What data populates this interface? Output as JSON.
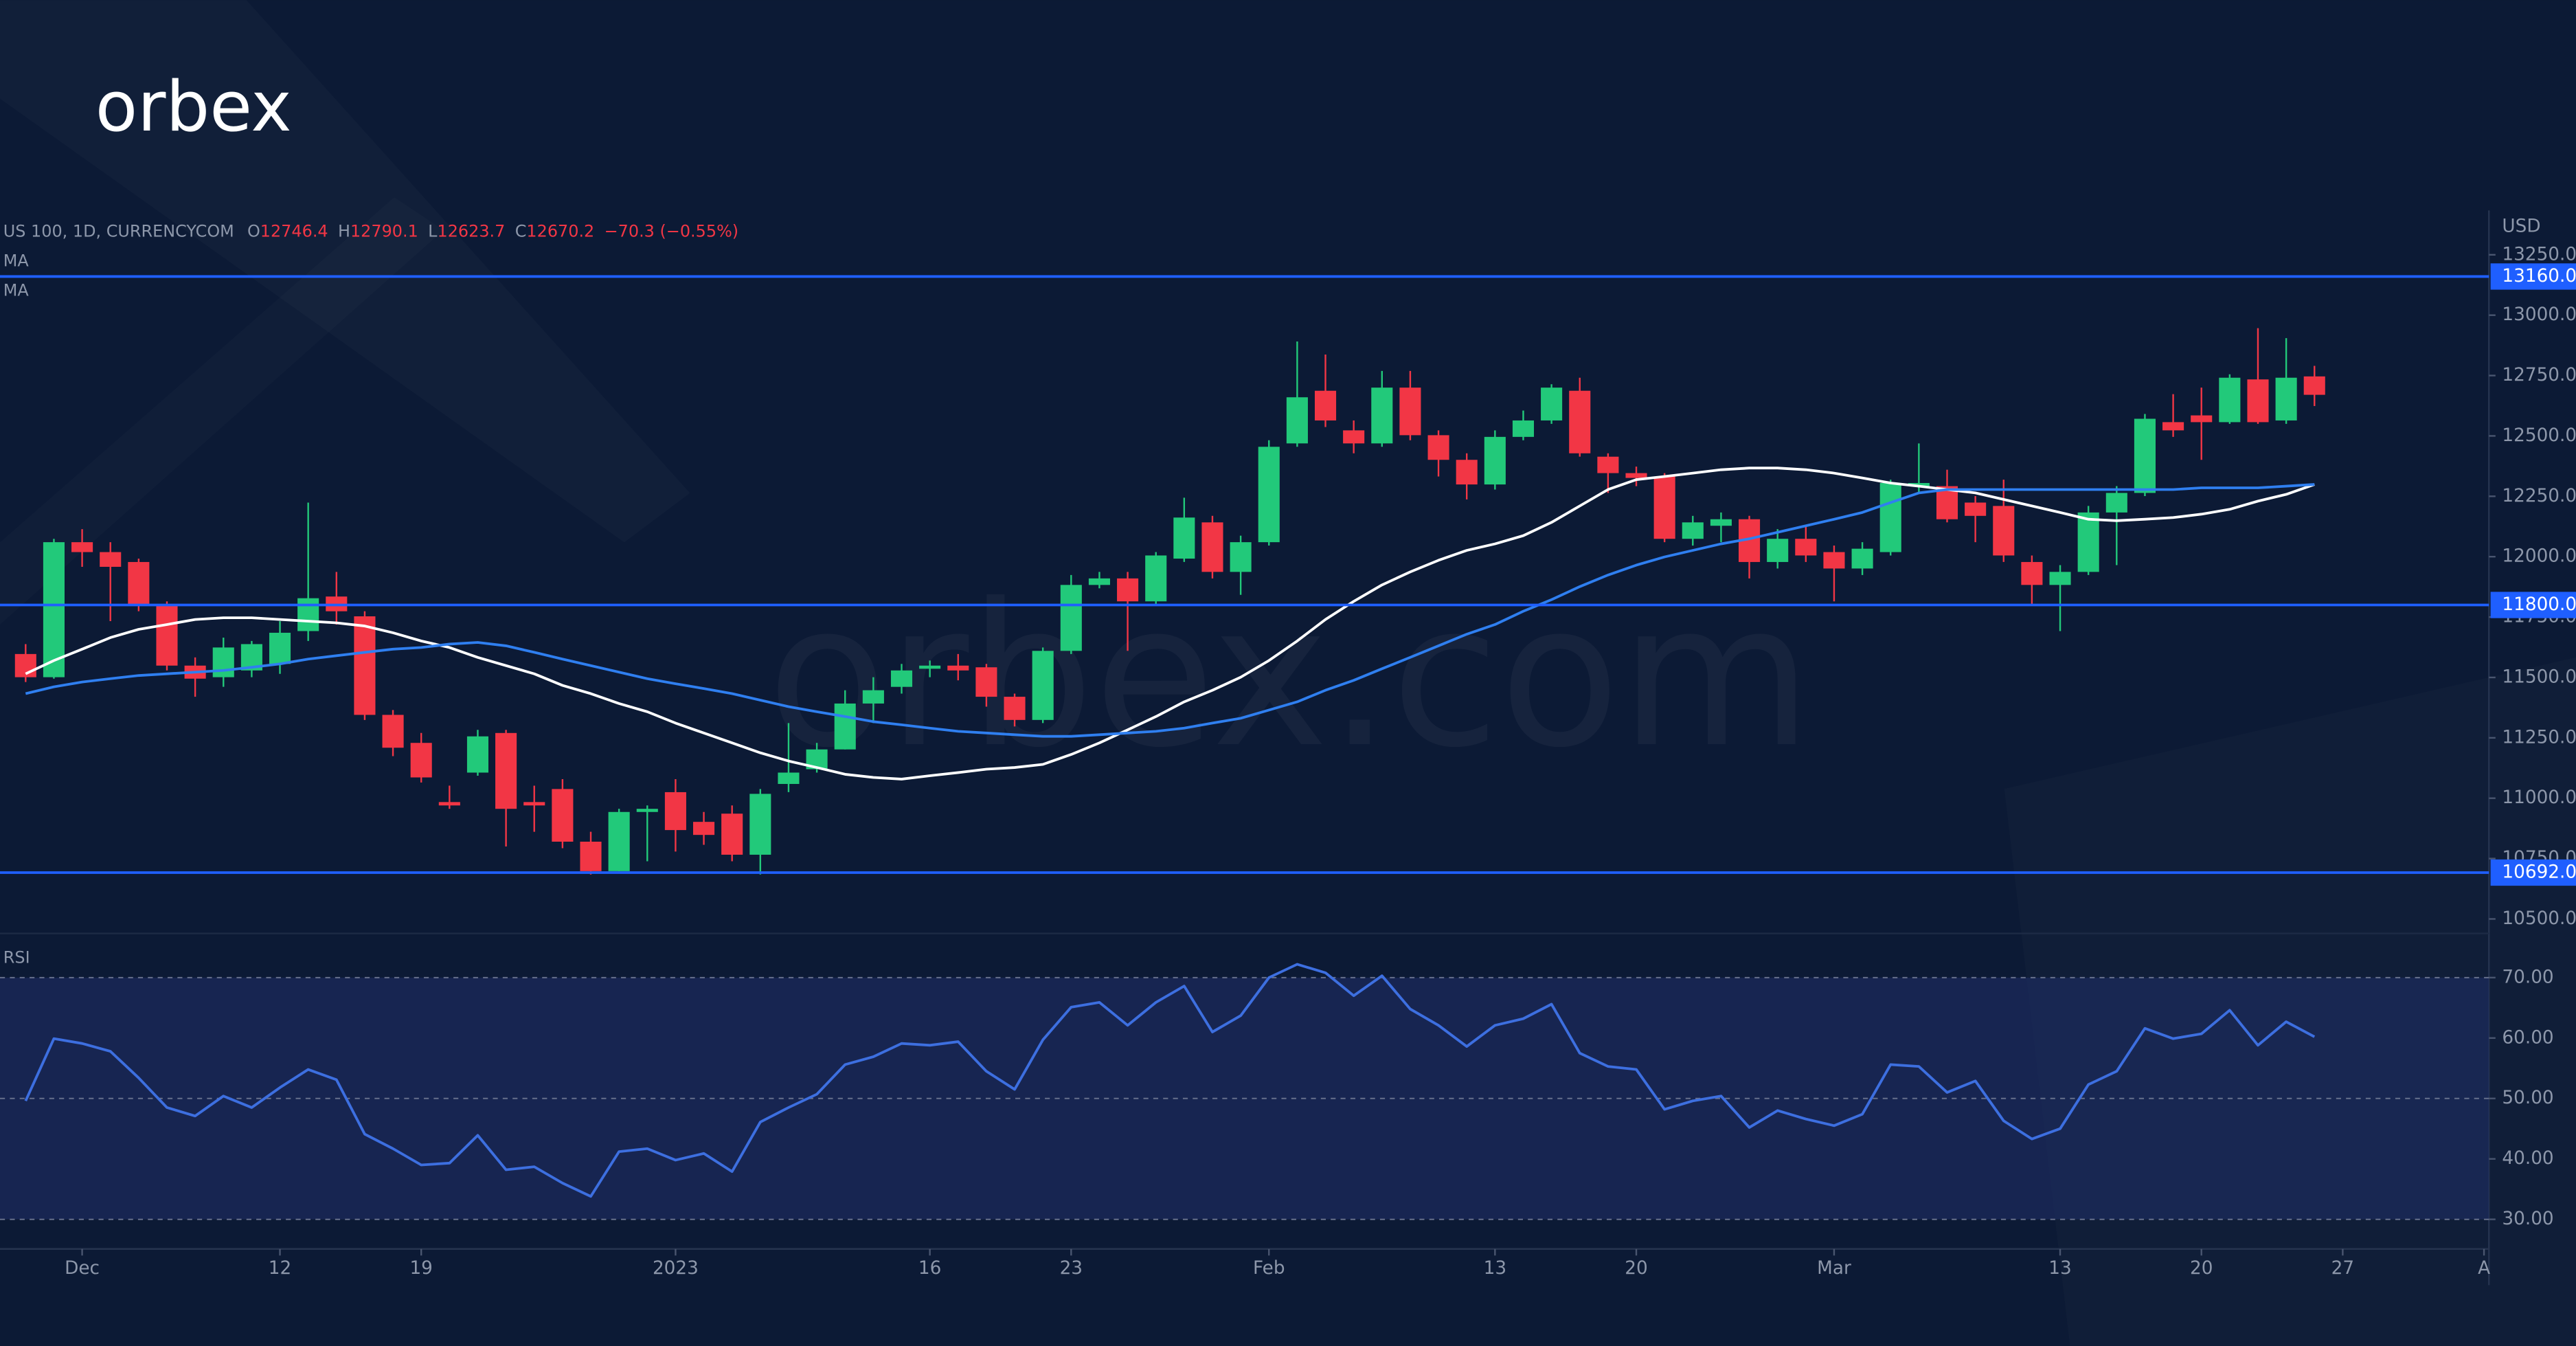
{
  "logo": "orbex",
  "watermark": "orbex.com",
  "chart_data": [
    {
      "type": "candlestick",
      "title": "US 100, 1D, CURRENCYCOM",
      "y_unit": "USD",
      "ohlc_prefixes": [
        "O",
        "H",
        "L",
        "C"
      ],
      "change_label": "−70.3 (−0.55%)",
      "categories": [
        null,
        null,
        "Dec",
        null,
        null,
        null,
        null,
        null,
        null,
        "12",
        null,
        null,
        null,
        null,
        "19",
        null,
        null,
        null,
        null,
        null,
        null,
        null,
        null,
        "2023",
        null,
        null,
        null,
        null,
        null,
        null,
        null,
        null,
        "16",
        null,
        null,
        null,
        null,
        "23",
        null,
        null,
        null,
        null,
        null,
        null,
        "Feb",
        null,
        null,
        null,
        null,
        null,
        null,
        null,
        "13",
        null,
        null,
        null,
        null,
        "20",
        null,
        null,
        null,
        null,
        null,
        null,
        "Mar",
        null,
        null,
        null,
        null,
        null,
        null,
        null,
        "13",
        null,
        null,
        null,
        null,
        "20",
        null,
        null,
        null,
        null,
        "27",
        null,
        null,
        null,
        null,
        "A"
      ],
      "open": [
        11597,
        11501,
        12060,
        12019,
        11978,
        11801,
        11549,
        11501,
        11529,
        11556,
        11692,
        11835,
        11753,
        11345,
        11229,
        10984,
        11106,
        11270,
        10984,
        11038,
        10820,
        10698,
        10943,
        11025,
        10902,
        10936,
        10766,
        11059,
        11120,
        11202,
        11392,
        11461,
        11536,
        11549,
        11542,
        11420,
        11324,
        11610,
        11883,
        11910,
        11815,
        11992,
        12142,
        11937,
        12060,
        12469,
        12687,
        12523,
        12469,
        12700,
        12503,
        12401,
        12299,
        12496,
        12564,
        12687,
        12414,
        12346,
        12332,
        12074,
        12128,
        12155,
        11978,
        12074,
        12019,
        11951,
        12019,
        12292,
        12292,
        12224,
        12210,
        11978,
        11883,
        11937,
        12183,
        12264,
        12557,
        12585,
        12557,
        12734,
        12564,
        12746.4,
        null,
        null,
        null,
        null,
        null,
        null
      ],
      "high": [
        11638,
        12074,
        12114,
        12060,
        11992,
        11815,
        11583,
        11665,
        11651,
        11733,
        12224,
        11937,
        11774,
        11365,
        11270,
        11052,
        11283,
        11283,
        11052,
        11079,
        10861,
        10956,
        10970,
        11079,
        10943,
        10970,
        11038,
        11311,
        11229,
        11447,
        11501,
        11556,
        11570,
        11597,
        11556,
        11433,
        11624,
        11924,
        11937,
        11937,
        12019,
        12244,
        12169,
        12087,
        12482,
        12891,
        12837,
        12564,
        12769,
        12769,
        12523,
        12428,
        12523,
        12605,
        12714,
        12741,
        12428,
        12373,
        12346,
        12169,
        12183,
        12169,
        12114,
        12128,
        12046,
        12060,
        12319,
        12469,
        12360,
        12251,
        12319,
        12005,
        11965,
        12210,
        12292,
        12591,
        12673,
        12700,
        12755,
        12946,
        12905,
        12790.1,
        null,
        null,
        null,
        null,
        null,
        null
      ],
      "low": [
        11481,
        11495,
        11958,
        11733,
        11774,
        11529,
        11420,
        11461,
        11501,
        11515,
        11651,
        11719,
        11324,
        11174,
        11065,
        10956,
        11093,
        10800,
        10861,
        10793,
        10684,
        10698,
        10739,
        10779,
        10807,
        10739,
        10684,
        11025,
        11106,
        11202,
        11311,
        11433,
        11501,
        11488,
        11379,
        11297,
        11311,
        11597,
        11869,
        11610,
        11801,
        11978,
        11910,
        11842,
        12046,
        12455,
        12537,
        12428,
        12455,
        12482,
        12332,
        12237,
        12278,
        12482,
        12550,
        12414,
        12264,
        12292,
        12060,
        12046,
        12060,
        11910,
        11951,
        11978,
        11815,
        11924,
        12005,
        12264,
        12142,
        12060,
        11978,
        11801,
        11692,
        11924,
        11965,
        12251,
        12496,
        12401,
        12550,
        12550,
        12550,
        12623.7,
        null,
        null,
        null,
        null,
        null,
        null
      ],
      "close": [
        11501,
        12060,
        12019,
        11958,
        11801,
        11549,
        11495,
        11624,
        11638,
        11685,
        11828,
        11774,
        11345,
        11209,
        11086,
        10970,
        11256,
        10956,
        10970,
        10820,
        10698,
        10943,
        10956,
        10868,
        10848,
        10766,
        11018,
        11106,
        11202,
        11392,
        11447,
        11529,
        11549,
        11529,
        11420,
        11324,
        11610,
        11883,
        11910,
        11815,
        12005,
        12162,
        11937,
        12060,
        12455,
        12660,
        12564,
        12469,
        12700,
        12503,
        12401,
        12299,
        12496,
        12564,
        12700,
        12428,
        12346,
        12326,
        12074,
        12142,
        12155,
        11978,
        12074,
        12005,
        11951,
        12033,
        12305,
        12305,
        12155,
        12169,
        12005,
        11883,
        11937,
        12183,
        12264,
        12571,
        12523,
        12557,
        12741,
        12557,
        12741,
        12670.2,
        null,
        null,
        null,
        null,
        null,
        null
      ],
      "up_color": "#22c97a",
      "down_color": "#f23645",
      "series": [
        {
          "name": "MA",
          "color": "#ffffff",
          "values": [
            11515,
            11570,
            11617,
            11665,
            11699,
            11719,
            11740,
            11747,
            11747,
            11740,
            11733,
            11726,
            11713,
            11685,
            11651,
            11624,
            11583,
            11549,
            11515,
            11467,
            11433,
            11392,
            11358,
            11311,
            11270,
            11229,
            11188,
            11154,
            11127,
            11099,
            11086,
            11079,
            11093,
            11106,
            11120,
            11127,
            11140,
            11181,
            11229,
            11283,
            11338,
            11399,
            11447,
            11501,
            11570,
            11651,
            11740,
            11815,
            11883,
            11937,
            11985,
            12026,
            12053,
            12087,
            12142,
            12210,
            12278,
            12319,
            12332,
            12346,
            12360,
            12367,
            12367,
            12360,
            12346,
            12326,
            12305,
            12292,
            12278,
            12264,
            12237,
            12210,
            12183,
            12155,
            12149,
            12155,
            12162,
            12176,
            12196,
            12230,
            12258,
            12299,
            null,
            null,
            null,
            null,
            null,
            null
          ]
        },
        {
          "name": "MA",
          "color": "#2f7ff0",
          "values": [
            11433,
            11461,
            11481,
            11495,
            11508,
            11515,
            11522,
            11529,
            11542,
            11556,
            11576,
            11590,
            11604,
            11617,
            11624,
            11638,
            11645,
            11631,
            11604,
            11576,
            11549,
            11522,
            11495,
            11474,
            11454,
            11433,
            11406,
            11379,
            11358,
            11338,
            11317,
            11304,
            11290,
            11277,
            11270,
            11263,
            11256,
            11256,
            11263,
            11270,
            11277,
            11290,
            11311,
            11331,
            11365,
            11399,
            11447,
            11488,
            11536,
            11583,
            11631,
            11679,
            11719,
            11774,
            11822,
            11876,
            11924,
            11965,
            11999,
            12026,
            12053,
            12074,
            12101,
            12128,
            12155,
            12183,
            12224,
            12264,
            12278,
            12278,
            12278,
            12278,
            12278,
            12278,
            12278,
            12278,
            12278,
            12285,
            12285,
            12285,
            12292,
            12299,
            null,
            null,
            null,
            null,
            null,
            null
          ]
        }
      ],
      "levels": [
        {
          "value": 13160,
          "label": "13160.0"
        },
        {
          "value": 11800,
          "label": "11800.0"
        },
        {
          "value": 10692,
          "label": "10692.0"
        }
      ],
      "level_color": "#1f5fff",
      "ylim": [
        10440,
        13420
      ],
      "yticks": [
        {
          "value": 10500,
          "label": "10500.0"
        },
        {
          "value": 10750,
          "label": "10750.0"
        },
        {
          "value": 11000,
          "label": "11000.0"
        },
        {
          "value": 11250,
          "label": "11250.0"
        },
        {
          "value": 11500,
          "label": "11500.0"
        },
        {
          "value": 11750,
          "label": "11750.0"
        },
        {
          "value": 12000,
          "label": "12000.0"
        },
        {
          "value": 12250,
          "label": "12250.0"
        },
        {
          "value": 12500,
          "label": "12500.0"
        },
        {
          "value": 12750,
          "label": "12750.0"
        },
        {
          "value": 13000,
          "label": "13000.0"
        },
        {
          "value": 13250,
          "label": "13250.0"
        }
      ],
      "grid": false
    },
    {
      "type": "line",
      "title": "RSI",
      "series": [
        {
          "name": "RSI",
          "color": "#3d6fe0",
          "values": [
            49.6,
            59.9,
            59.1,
            57.8,
            53.4,
            48.5,
            47.1,
            50.4,
            48.5,
            51.8,
            54.8,
            53.1,
            44.1,
            41.7,
            39.0,
            39.3,
            43.9,
            38.2,
            38.7,
            36.0,
            33.8,
            41.2,
            41.7,
            39.8,
            40.9,
            37.9,
            46.1,
            48.5,
            50.7,
            55.6,
            56.9,
            59.1,
            58.8,
            59.4,
            54.5,
            51.5,
            59.7,
            65.1,
            65.9,
            62.1,
            65.9,
            68.6,
            61.0,
            63.7,
            70.0,
            72.2,
            70.8,
            67.0,
            70.3,
            64.8,
            62.1,
            58.6,
            62.1,
            63.2,
            65.6,
            57.5,
            55.3,
            54.8,
            48.2,
            49.6,
            50.4,
            45.2,
            48.0,
            46.6,
            45.5,
            47.4,
            55.6,
            55.3,
            51.0,
            52.9,
            46.3,
            43.3,
            45.0,
            52.3,
            54.5,
            61.6,
            59.9,
            60.7,
            64.6,
            58.8,
            62.7,
            60.2,
            null,
            null,
            null,
            null,
            null,
            null
          ]
        }
      ],
      "guides": [
        70,
        50,
        30
      ],
      "band_color": "#1c2b5e",
      "ylim": [
        25.1,
        75.4
      ],
      "yticks": [
        {
          "value": 30,
          "label": "30.00"
        },
        {
          "value": 40,
          "label": "40.00"
        },
        {
          "value": 50,
          "label": "50.00"
        },
        {
          "value": 60,
          "label": "60.00"
        },
        {
          "value": 70,
          "label": "70.00"
        }
      ],
      "grid": false
    }
  ]
}
